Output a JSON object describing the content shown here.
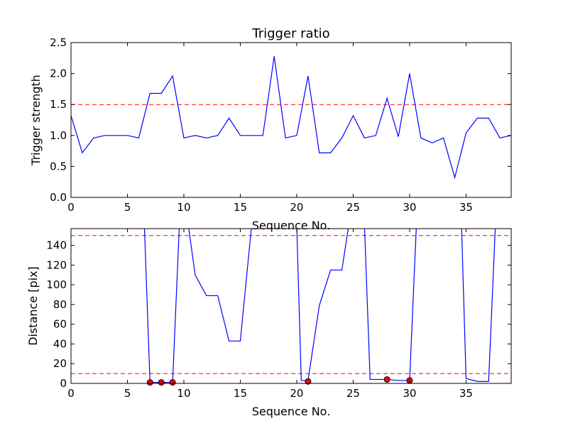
{
  "chart_data": [
    {
      "type": "line",
      "title": "Trigger ratio",
      "xlabel": "Sequence No.",
      "ylabel": "Trigger strength",
      "xlim": [
        0,
        39
      ],
      "ylim": [
        0,
        2.5
      ],
      "xticks": [
        "0",
        "5",
        "10",
        "15",
        "20",
        "25",
        "30",
        "35"
      ],
      "yticks": [
        "0.0",
        "0.5",
        "1.0",
        "1.5",
        "2.0",
        "2.5"
      ],
      "xtick_values": [
        0,
        5,
        10,
        15,
        20,
        25,
        30,
        35
      ],
      "ytick_values": [
        0,
        0.5,
        1.0,
        1.5,
        2.0,
        2.5
      ],
      "threshold_lines": [
        1.5
      ],
      "threshold_color": "#ff0000",
      "series": [
        {
          "color": "#0000ff",
          "x": [
            0,
            1,
            2,
            3,
            4,
            5,
            6,
            7,
            8,
            9,
            10,
            11,
            12,
            13,
            14,
            15,
            16,
            17,
            18,
            19,
            20,
            21,
            22,
            23,
            24,
            25,
            26,
            27,
            28,
            29,
            30,
            31,
            32,
            33,
            34,
            35,
            36,
            37,
            38,
            39
          ],
          "y": [
            1.32,
            0.72,
            0.96,
            1.0,
            1.0,
            1.0,
            0.96,
            1.68,
            1.68,
            1.96,
            0.96,
            1.0,
            0.96,
            1.0,
            1.28,
            1.0,
            1.0,
            1.0,
            2.28,
            0.96,
            1.0,
            1.96,
            0.72,
            0.72,
            0.96,
            1.32,
            0.96,
            1.0,
            1.6,
            0.98,
            2.0,
            0.96,
            0.88,
            0.96,
            0.32,
            1.04,
            1.28,
            1.28,
            0.96,
            1.0
          ]
        }
      ]
    },
    {
      "type": "line",
      "title": "",
      "xlabel": "Sequence No.",
      "ylabel": "Distance [pix]",
      "xlim": [
        0,
        39
      ],
      "ylim": [
        0,
        157
      ],
      "xticks": [
        "0",
        "5",
        "10",
        "15",
        "20",
        "25",
        "30",
        "35"
      ],
      "yticks": [
        "0",
        "20",
        "40",
        "60",
        "80",
        "100",
        "120",
        "140"
      ],
      "xtick_values": [
        0,
        5,
        10,
        15,
        20,
        25,
        30,
        35
      ],
      "ytick_values": [
        0,
        20,
        40,
        60,
        80,
        100,
        120,
        140
      ],
      "threshold_lines": [
        10,
        150
      ],
      "threshold_color": "#ff0000",
      "series": [
        {
          "color": "#0000ff",
          "x": [
            6.5,
            7,
            8,
            9,
            9.6,
            10.4,
            11,
            12,
            13,
            14,
            15,
            16,
            20,
            20.4,
            21,
            22,
            23,
            24,
            24.6,
            26,
            26.5,
            28,
            29,
            30,
            30.6,
            34.6,
            35,
            36,
            37,
            37.6
          ],
          "y": [
            160,
            1,
            1,
            1,
            160,
            160,
            110,
            89,
            89,
            43,
            43,
            160,
            160,
            3,
            3,
            79,
            115,
            115,
            160,
            160,
            4,
            4,
            3,
            3,
            160,
            160,
            5,
            2,
            2,
            160
          ]
        }
      ],
      "markers": {
        "color": "#ff0000",
        "x": [
          7,
          8,
          9,
          21,
          28,
          30
        ],
        "y": [
          1,
          1,
          1,
          2,
          4,
          3
        ]
      }
    }
  ]
}
